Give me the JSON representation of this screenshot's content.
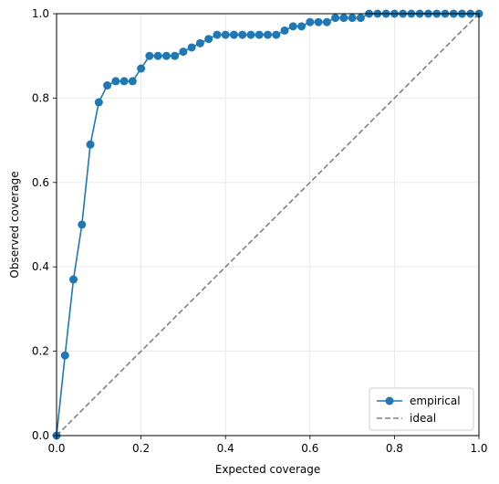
{
  "chart_data": {
    "type": "line",
    "xlabel": "Expected coverage",
    "ylabel": "Observed coverage",
    "xlim": [
      0,
      1
    ],
    "ylim": [
      0,
      1
    ],
    "xticks": [
      "0.0",
      "0.2",
      "0.4",
      "0.6",
      "0.8",
      "1.0"
    ],
    "yticks": [
      "0.0",
      "0.2",
      "0.4",
      "0.6",
      "0.8",
      "1.0"
    ],
    "grid": true,
    "legend_position": "lower-right",
    "series": [
      {
        "name": "empirical",
        "style": "solid line with circle markers",
        "color": "#1f77b4",
        "x": [
          0.0,
          0.02,
          0.04,
          0.06,
          0.08,
          0.1,
          0.12,
          0.14,
          0.16,
          0.18,
          0.2,
          0.22,
          0.24,
          0.26,
          0.28,
          0.3,
          0.32,
          0.34,
          0.36,
          0.38,
          0.4,
          0.42,
          0.44,
          0.46,
          0.48,
          0.5,
          0.52,
          0.54,
          0.56,
          0.58,
          0.6,
          0.62,
          0.64,
          0.66,
          0.68,
          0.7,
          0.72,
          0.74,
          0.76,
          0.78,
          0.8,
          0.82,
          0.84,
          0.86,
          0.88,
          0.9,
          0.92,
          0.94,
          0.96,
          0.98,
          1.0
        ],
        "y": [
          0.0,
          0.19,
          0.37,
          0.5,
          0.69,
          0.79,
          0.83,
          0.84,
          0.84,
          0.84,
          0.87,
          0.9,
          0.9,
          0.9,
          0.9,
          0.91,
          0.92,
          0.93,
          0.94,
          0.95,
          0.95,
          0.95,
          0.95,
          0.95,
          0.95,
          0.95,
          0.95,
          0.96,
          0.97,
          0.97,
          0.98,
          0.98,
          0.98,
          0.99,
          0.99,
          0.99,
          0.99,
          1.0,
          1.0,
          1.0,
          1.0,
          1.0,
          1.0,
          1.0,
          1.0,
          1.0,
          1.0,
          1.0,
          1.0,
          1.0,
          1.0
        ]
      },
      {
        "name": "ideal",
        "style": "dashed line",
        "color": "#808080",
        "x": [
          0,
          1
        ],
        "y": [
          0,
          1
        ]
      }
    ]
  }
}
